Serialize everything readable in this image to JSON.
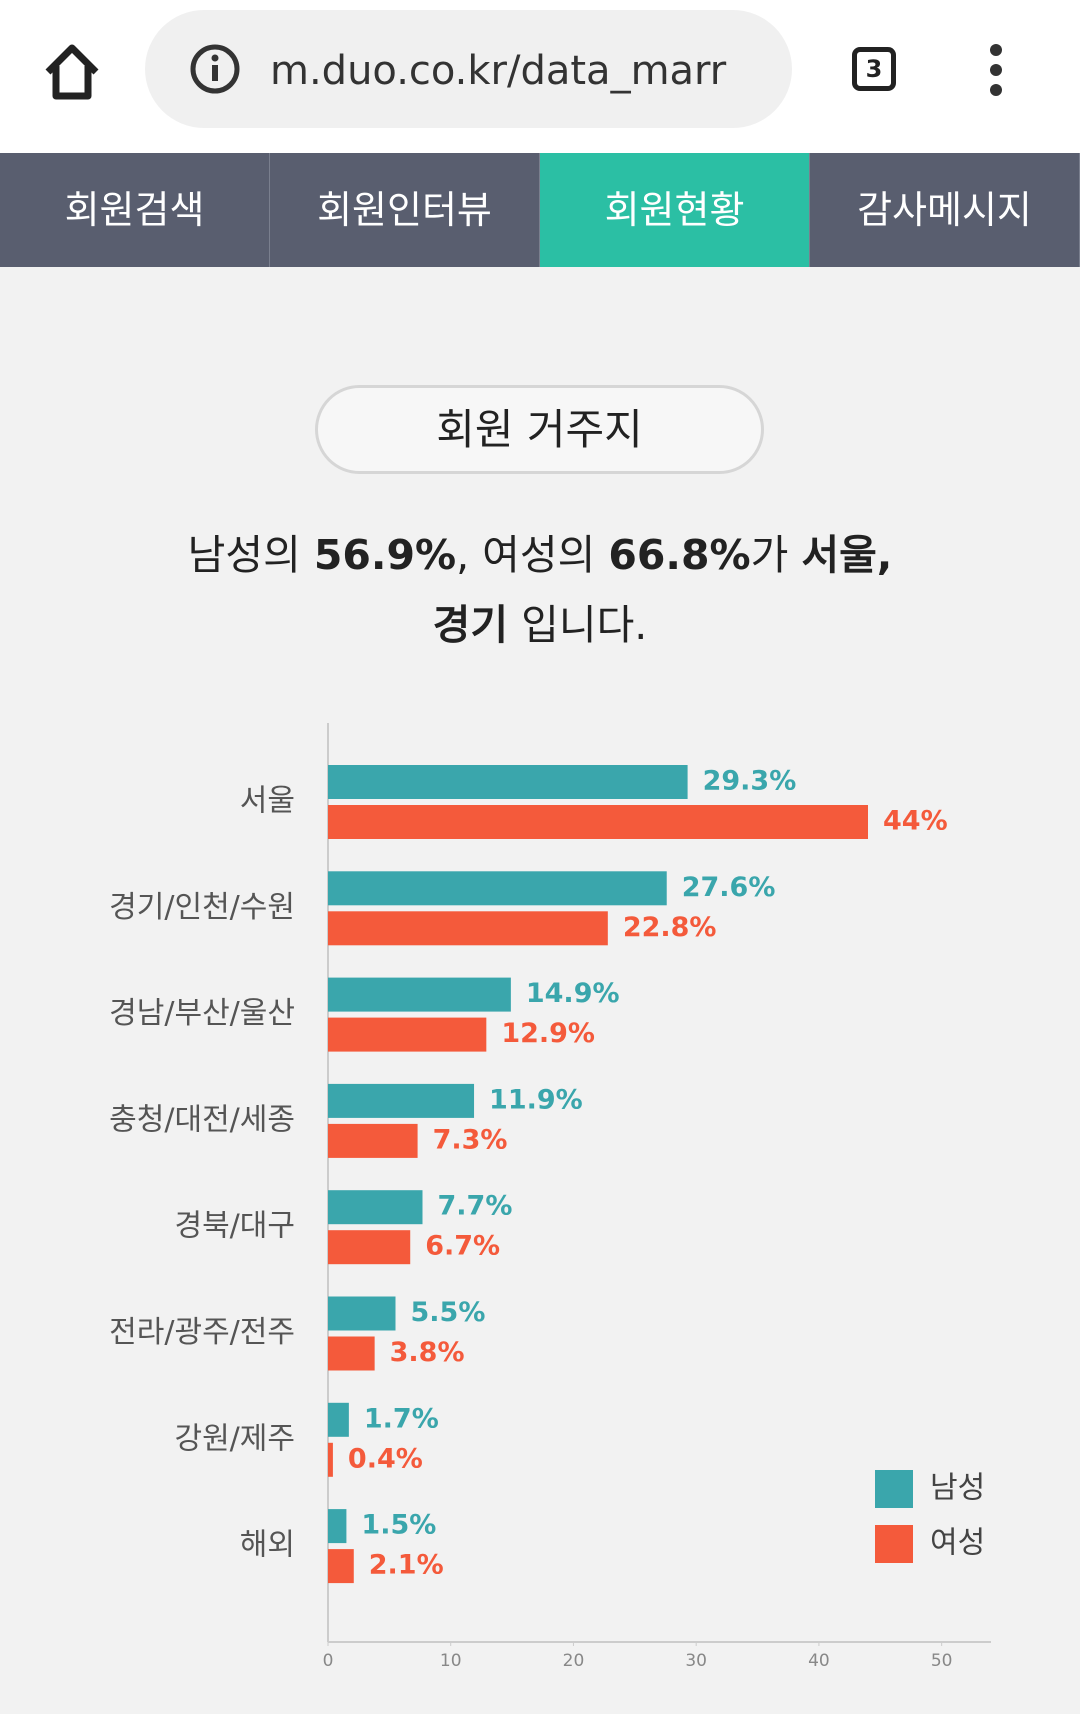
{
  "browser": {
    "url": "m.duo.co.kr/data_marr",
    "tab_count": 3
  },
  "nav": {
    "tabs": [
      "회원검색",
      "회원인터뷰",
      "회원현황",
      "감사메시지"
    ],
    "active": 2
  },
  "section_title": "회원 거주지",
  "headline": {
    "lines": [
      [
        {
          "text": "남성의 ",
          "bold": false
        },
        {
          "text": "56.9%",
          "bold": true
        },
        {
          "text": ", 여성의 ",
          "bold": false
        },
        {
          "text": "66.8%",
          "bold": true
        },
        {
          "text": "가 ",
          "bold": false
        },
        {
          "text": "서울,",
          "bold": true
        }
      ],
      [
        {
          "text": "경기",
          "bold": true
        },
        {
          "text": " 입니다.",
          "bold": false
        }
      ]
    ]
  },
  "chart_data": {
    "type": "hbar",
    "categories": [
      "서울",
      "경기/인천/수원",
      "경남/부산/울산",
      "충청/대전/세종",
      "경북/대구",
      "전라/광주/전주",
      "강원/제주",
      "해외"
    ],
    "series": [
      {
        "name": "남성",
        "color": "#3aa6ac",
        "values": [
          29.3,
          27.6,
          14.9,
          11.9,
          7.7,
          5.5,
          1.7,
          1.5
        ],
        "value_labels": [
          "29.3%",
          "27.6%",
          "14.9%",
          "11.9%",
          "7.7%",
          "5.5%",
          "1.7%",
          "1.5%"
        ]
      },
      {
        "name": "여성",
        "color": "#f45a3b",
        "values": [
          44,
          22.8,
          12.9,
          7.3,
          6.7,
          3.8,
          0.4,
          2.1
        ],
        "value_labels": [
          "44%",
          "22.8%",
          "12.9%",
          "7.3%",
          "6.7%",
          "3.8%",
          "0.4%",
          "2.1%"
        ]
      }
    ],
    "xlim": [
      0,
      55
    ],
    "xticks": [
      0,
      10,
      20,
      30,
      40,
      50
    ],
    "legend": "bottom-right"
  }
}
